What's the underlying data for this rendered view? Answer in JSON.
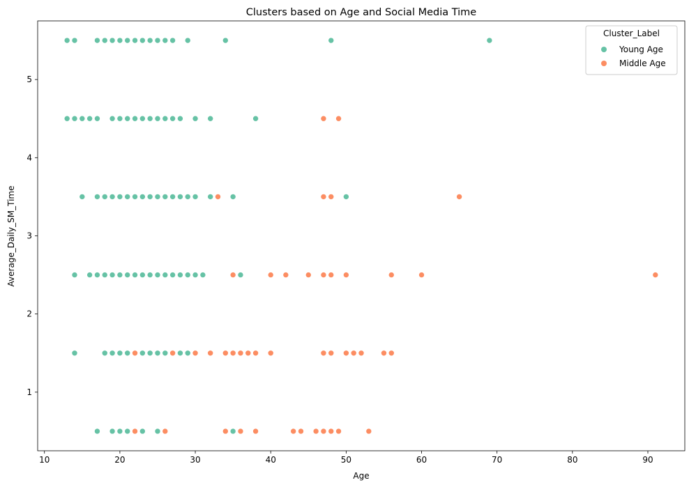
{
  "chart_data": {
    "type": "scatter",
    "title": "Clusters based on Age and Social Media Time",
    "xlabel": "Age",
    "ylabel": "Average_Daily_SM_Time",
    "xlim": [
      9.1,
      94.9
    ],
    "ylim": [
      0.25,
      5.75
    ],
    "xticks": [
      10,
      20,
      30,
      40,
      50,
      60,
      70,
      80,
      90
    ],
    "yticks": [
      1,
      2,
      3,
      4,
      5
    ],
    "grid": false,
    "legend": {
      "title": "Cluster_Label",
      "placement": "top-right"
    },
    "series": [
      {
        "name": "Young Age",
        "color": "#66c2a5",
        "points": [
          [
            13,
            5.5
          ],
          [
            14,
            5.5
          ],
          [
            17,
            5.5
          ],
          [
            18,
            5.5
          ],
          [
            19,
            5.5
          ],
          [
            20,
            5.5
          ],
          [
            21,
            5.5
          ],
          [
            22,
            5.5
          ],
          [
            23,
            5.5
          ],
          [
            24,
            5.5
          ],
          [
            25,
            5.5
          ],
          [
            26,
            5.5
          ],
          [
            27,
            5.5
          ],
          [
            29,
            5.5
          ],
          [
            34,
            5.5
          ],
          [
            48,
            5.5
          ],
          [
            69,
            5.5
          ],
          [
            13,
            4.5
          ],
          [
            14,
            4.5
          ],
          [
            15,
            4.5
          ],
          [
            16,
            4.5
          ],
          [
            17,
            4.5
          ],
          [
            19,
            4.5
          ],
          [
            20,
            4.5
          ],
          [
            21,
            4.5
          ],
          [
            22,
            4.5
          ],
          [
            23,
            4.5
          ],
          [
            24,
            4.5
          ],
          [
            25,
            4.5
          ],
          [
            26,
            4.5
          ],
          [
            27,
            4.5
          ],
          [
            28,
            4.5
          ],
          [
            30,
            4.5
          ],
          [
            32,
            4.5
          ],
          [
            38,
            4.5
          ],
          [
            15,
            3.5
          ],
          [
            17,
            3.5
          ],
          [
            18,
            3.5
          ],
          [
            19,
            3.5
          ],
          [
            20,
            3.5
          ],
          [
            21,
            3.5
          ],
          [
            22,
            3.5
          ],
          [
            23,
            3.5
          ],
          [
            24,
            3.5
          ],
          [
            25,
            3.5
          ],
          [
            26,
            3.5
          ],
          [
            27,
            3.5
          ],
          [
            28,
            3.5
          ],
          [
            29,
            3.5
          ],
          [
            30,
            3.5
          ],
          [
            32,
            3.5
          ],
          [
            35,
            3.5
          ],
          [
            50,
            3.5
          ],
          [
            14,
            2.5
          ],
          [
            16,
            2.5
          ],
          [
            17,
            2.5
          ],
          [
            18,
            2.5
          ],
          [
            19,
            2.5
          ],
          [
            20,
            2.5
          ],
          [
            21,
            2.5
          ],
          [
            22,
            2.5
          ],
          [
            23,
            2.5
          ],
          [
            24,
            2.5
          ],
          [
            25,
            2.5
          ],
          [
            26,
            2.5
          ],
          [
            27,
            2.5
          ],
          [
            28,
            2.5
          ],
          [
            29,
            2.5
          ],
          [
            30,
            2.5
          ],
          [
            31,
            2.5
          ],
          [
            36,
            2.5
          ],
          [
            14,
            1.5
          ],
          [
            18,
            1.5
          ],
          [
            19,
            1.5
          ],
          [
            20,
            1.5
          ],
          [
            21,
            1.5
          ],
          [
            23,
            1.5
          ],
          [
            24,
            1.5
          ],
          [
            25,
            1.5
          ],
          [
            26,
            1.5
          ],
          [
            28,
            1.5
          ],
          [
            29,
            1.5
          ],
          [
            17,
            0.5
          ],
          [
            19,
            0.5
          ],
          [
            20,
            0.5
          ],
          [
            21,
            0.5
          ],
          [
            23,
            0.5
          ],
          [
            25,
            0.5
          ],
          [
            35,
            0.5
          ]
        ]
      },
      {
        "name": "Middle Age",
        "color": "#fc8d62",
        "points": [
          [
            47,
            4.5
          ],
          [
            49,
            4.5
          ],
          [
            33,
            3.5
          ],
          [
            47,
            3.5
          ],
          [
            48,
            3.5
          ],
          [
            65,
            3.5
          ],
          [
            35,
            2.5
          ],
          [
            40,
            2.5
          ],
          [
            42,
            2.5
          ],
          [
            45,
            2.5
          ],
          [
            47,
            2.5
          ],
          [
            48,
            2.5
          ],
          [
            50,
            2.5
          ],
          [
            56,
            2.5
          ],
          [
            60,
            2.5
          ],
          [
            91,
            2.5
          ],
          [
            22,
            1.5
          ],
          [
            27,
            1.5
          ],
          [
            30,
            1.5
          ],
          [
            32,
            1.5
          ],
          [
            34,
            1.5
          ],
          [
            35,
            1.5
          ],
          [
            36,
            1.5
          ],
          [
            37,
            1.5
          ],
          [
            38,
            1.5
          ],
          [
            40,
            1.5
          ],
          [
            47,
            1.5
          ],
          [
            48,
            1.5
          ],
          [
            50,
            1.5
          ],
          [
            51,
            1.5
          ],
          [
            52,
            1.5
          ],
          [
            55,
            1.5
          ],
          [
            56,
            1.5
          ],
          [
            22,
            0.5
          ],
          [
            26,
            0.5
          ],
          [
            34,
            0.5
          ],
          [
            36,
            0.5
          ],
          [
            38,
            0.5
          ],
          [
            43,
            0.5
          ],
          [
            44,
            0.5
          ],
          [
            46,
            0.5
          ],
          [
            47,
            0.5
          ],
          [
            48,
            0.5
          ],
          [
            49,
            0.5
          ],
          [
            53,
            0.5
          ]
        ]
      }
    ]
  }
}
